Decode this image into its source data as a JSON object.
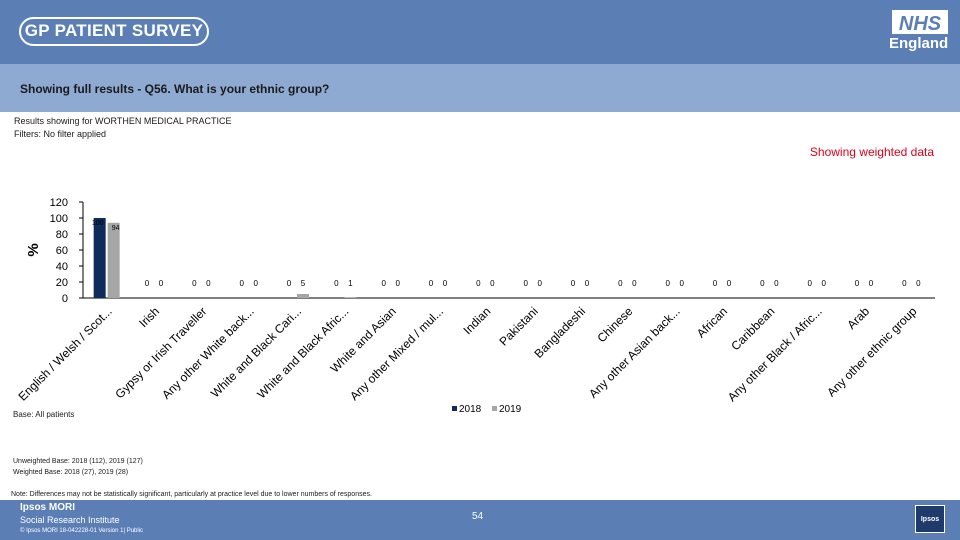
{
  "header": {
    "survey_logo": "GP PATIENT SURVEY",
    "nhs_logo": "NHS",
    "nhs_region": "England"
  },
  "title": "Showing full results - Q56.  What is your ethnic group?",
  "results_for": "Results showing for WORTHEN MEDICAL PRACTICE",
  "filters": "Filters: No filter applied",
  "weighted_label": "Showing weighted data",
  "base_label": "Base: All patients",
  "unweighted_base": "Unweighted Base: 2018 (112), 2019 (127)",
  "weighted_base": "Weighted Base: 2018 (27), 2019 (28)",
  "note": "Note: Differences may not be statistically significant, particularly at practice level due to lower numbers of responses.",
  "footer": {
    "org": "Ipsos MORI",
    "org_sub": "Social Research Institute",
    "copyright": "© Ipsos MORI        18-042228-01 Version 1| Public",
    "page": "54",
    "ipsos_logo": "Ipsos"
  },
  "colors": {
    "s2018": "#0f2a5c",
    "s2019": "#a6a6a6",
    "header": "#5b7fb5",
    "titlebar": "#8faad2",
    "accent": "#e0001a"
  },
  "chart_data": {
    "type": "bar",
    "ylabel": "%",
    "ylim": [
      0,
      120
    ],
    "yticks": [
      0,
      20,
      40,
      60,
      80,
      100,
      120
    ],
    "legend_position": "bottom",
    "categories": [
      "English / Welsh / Scot...",
      "Irish",
      "Gypsy or Irish Traveller",
      "Any other White back...",
      "White and Black Cari...",
      "White and Black Afric...",
      "White and Asian",
      "Any other Mixed / mul...",
      "Indian",
      "Pakistani",
      "Bangladeshi",
      "Chinese",
      "Any other Asian back...",
      "African",
      "Caribbean",
      "Any other Black / Afric...",
      "Arab",
      "Any other ethnic group"
    ],
    "series": [
      {
        "name": "2018",
        "values": [
          100,
          0,
          0,
          0,
          0,
          0,
          0,
          0,
          0,
          0,
          0,
          0,
          0,
          0,
          0,
          0,
          0,
          0
        ]
      },
      {
        "name": "2019",
        "values": [
          94,
          0,
          0,
          0,
          5,
          1,
          0,
          0,
          0,
          0,
          0,
          0,
          0,
          0,
          0,
          0,
          0,
          0
        ]
      }
    ]
  }
}
